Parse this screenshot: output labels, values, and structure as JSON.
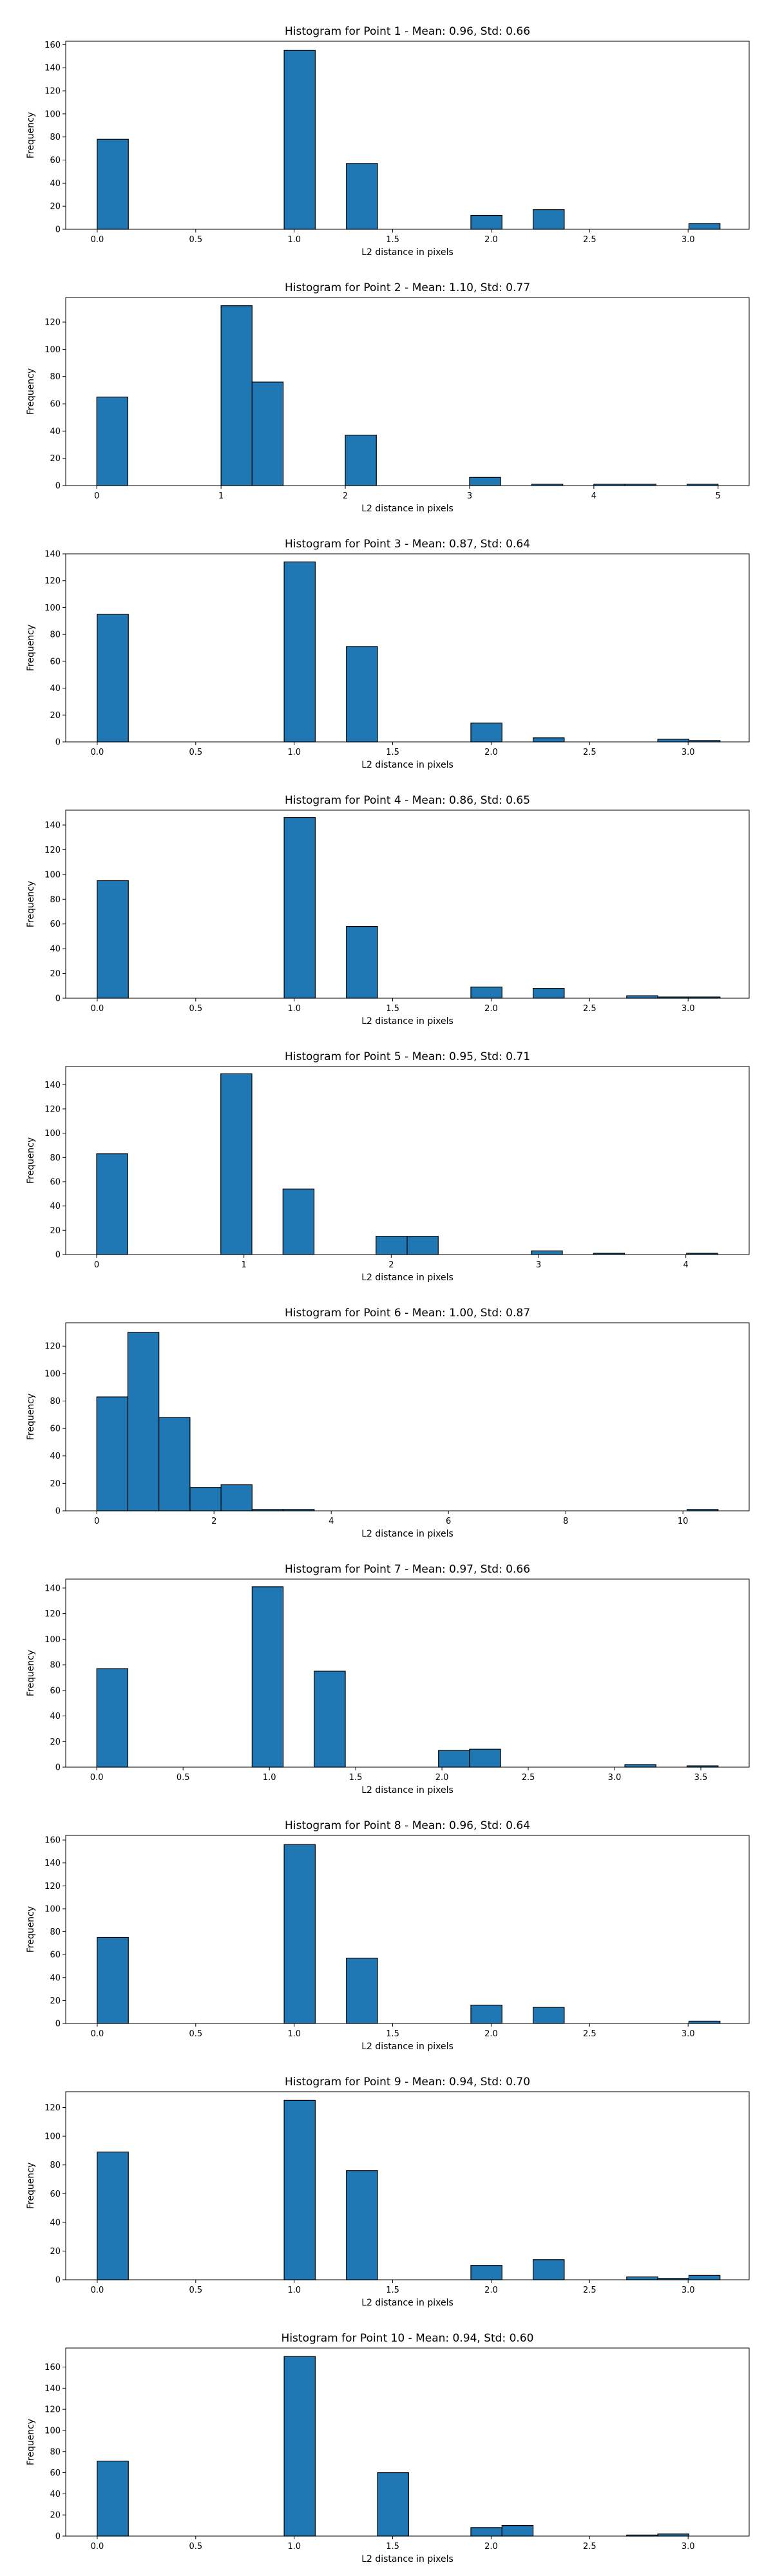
{
  "figure": {
    "bar_color": "#1f77b4",
    "edge_color": "#000000",
    "background": "#ffffff"
  },
  "chart_data": [
    {
      "type": "bar",
      "title": "Histogram for Point 1 - Mean: 0.96, Std: 0.66",
      "xlabel": "L2 distance in pixels",
      "ylabel": "Frequency",
      "xlim": [
        -0.16,
        3.31
      ],
      "ylim": [
        0,
        163
      ],
      "xticks": [
        0.0,
        0.5,
        1.0,
        1.5,
        2.0,
        2.5,
        3.0
      ],
      "xtick_labels": [
        "0.0",
        "0.5",
        "1.0",
        "1.5",
        "2.0",
        "2.5",
        "3.0"
      ],
      "yticks": [
        0,
        20,
        40,
        60,
        80,
        100,
        120,
        140,
        160
      ],
      "ytick_labels": [
        "0",
        "20",
        "40",
        "60",
        "80",
        "100",
        "120",
        "140",
        "160"
      ],
      "bins": [
        {
          "x0": 0.0,
          "x1": 0.158,
          "count": 78
        },
        {
          "x0": 0.949,
          "x1": 1.107,
          "count": 155
        },
        {
          "x0": 1.265,
          "x1": 1.423,
          "count": 57
        },
        {
          "x0": 1.897,
          "x1": 2.055,
          "count": 12
        },
        {
          "x0": 2.213,
          "x1": 2.371,
          "count": 17
        },
        {
          "x0": 3.004,
          "x1": 3.162,
          "count": 5
        }
      ]
    },
    {
      "type": "bar",
      "title": "Histogram for Point 2 - Mean: 1.10, Std: 0.77",
      "xlabel": "L2 distance in pixels",
      "ylabel": "Frequency",
      "xlim": [
        -0.25,
        5.25
      ],
      "ylim": [
        0,
        138
      ],
      "xticks": [
        0,
        1,
        2,
        3,
        4,
        5
      ],
      "xtick_labels": [
        "0",
        "1",
        "2",
        "3",
        "4",
        "5"
      ],
      "yticks": [
        0,
        20,
        40,
        60,
        80,
        100,
        120
      ],
      "ytick_labels": [
        "0",
        "20",
        "40",
        "60",
        "80",
        "100",
        "120"
      ],
      "bins": [
        {
          "x0": 0.0,
          "x1": 0.25,
          "count": 65
        },
        {
          "x0": 1.0,
          "x1": 1.25,
          "count": 132
        },
        {
          "x0": 1.25,
          "x1": 1.5,
          "count": 76
        },
        {
          "x0": 2.0,
          "x1": 2.25,
          "count": 37
        },
        {
          "x0": 3.0,
          "x1": 3.25,
          "count": 6
        },
        {
          "x0": 3.5,
          "x1": 3.75,
          "count": 1
        },
        {
          "x0": 4.0,
          "x1": 4.25,
          "count": 1
        },
        {
          "x0": 4.25,
          "x1": 4.5,
          "count": 1
        },
        {
          "x0": 4.75,
          "x1": 5.0,
          "count": 1
        }
      ]
    },
    {
      "type": "bar",
      "title": "Histogram for Point 3 - Mean: 0.87, Std: 0.64",
      "xlabel": "L2 distance in pixels",
      "ylabel": "Frequency",
      "xlim": [
        -0.16,
        3.31
      ],
      "ylim": [
        0,
        140
      ],
      "xticks": [
        0.0,
        0.5,
        1.0,
        1.5,
        2.0,
        2.5,
        3.0
      ],
      "xtick_labels": [
        "0.0",
        "0.5",
        "1.0",
        "1.5",
        "2.0",
        "2.5",
        "3.0"
      ],
      "yticks": [
        0,
        20,
        40,
        60,
        80,
        100,
        120,
        140
      ],
      "ytick_labels": [
        "0",
        "20",
        "40",
        "60",
        "80",
        "100",
        "120",
        "140"
      ],
      "bins": [
        {
          "x0": 0.0,
          "x1": 0.158,
          "count": 95
        },
        {
          "x0": 0.949,
          "x1": 1.107,
          "count": 134
        },
        {
          "x0": 1.265,
          "x1": 1.423,
          "count": 71
        },
        {
          "x0": 1.897,
          "x1": 2.055,
          "count": 14
        },
        {
          "x0": 2.213,
          "x1": 2.371,
          "count": 3
        },
        {
          "x0": 2.846,
          "x1": 3.004,
          "count": 2
        },
        {
          "x0": 3.004,
          "x1": 3.162,
          "count": 1
        }
      ]
    },
    {
      "type": "bar",
      "title": "Histogram for Point 4 - Mean: 0.86, Std: 0.65",
      "xlabel": "L2 distance in pixels",
      "ylabel": "Frequency",
      "xlim": [
        -0.16,
        3.31
      ],
      "ylim": [
        0,
        152
      ],
      "xticks": [
        0.0,
        0.5,
        1.0,
        1.5,
        2.0,
        2.5,
        3.0
      ],
      "xtick_labels": [
        "0.0",
        "0.5",
        "1.0",
        "1.5",
        "2.0",
        "2.5",
        "3.0"
      ],
      "yticks": [
        0,
        20,
        40,
        60,
        80,
        100,
        120,
        140
      ],
      "ytick_labels": [
        "0",
        "20",
        "40",
        "60",
        "80",
        "100",
        "120",
        "140"
      ],
      "bins": [
        {
          "x0": 0.0,
          "x1": 0.158,
          "count": 95
        },
        {
          "x0": 0.949,
          "x1": 1.107,
          "count": 146
        },
        {
          "x0": 1.265,
          "x1": 1.423,
          "count": 58
        },
        {
          "x0": 1.897,
          "x1": 2.055,
          "count": 9
        },
        {
          "x0": 2.213,
          "x1": 2.371,
          "count": 8
        },
        {
          "x0": 2.688,
          "x1": 2.846,
          "count": 2
        },
        {
          "x0": 2.846,
          "x1": 3.004,
          "count": 1
        },
        {
          "x0": 3.004,
          "x1": 3.162,
          "count": 1
        }
      ]
    },
    {
      "type": "bar",
      "title": "Histogram for Point 5 - Mean: 0.95, Std: 0.71",
      "xlabel": "L2 distance in pixels",
      "ylabel": "Frequency",
      "xlim": [
        -0.21,
        4.43
      ],
      "ylim": [
        0,
        155
      ],
      "xticks": [
        0,
        1,
        2,
        3,
        4
      ],
      "xtick_labels": [
        "0",
        "1",
        "2",
        "3",
        "4"
      ],
      "yticks": [
        0,
        20,
        40,
        60,
        80,
        100,
        120,
        140
      ],
      "ytick_labels": [
        "0",
        "20",
        "40",
        "60",
        "80",
        "100",
        "120",
        "140"
      ],
      "bins": [
        {
          "x0": 0.0,
          "x1": 0.211,
          "count": 83
        },
        {
          "x0": 0.843,
          "x1": 1.054,
          "count": 149
        },
        {
          "x0": 1.265,
          "x1": 1.476,
          "count": 54
        },
        {
          "x0": 1.897,
          "x1": 2.108,
          "count": 15
        },
        {
          "x0": 2.108,
          "x1": 2.319,
          "count": 15
        },
        {
          "x0": 2.951,
          "x1": 3.162,
          "count": 3
        },
        {
          "x0": 3.373,
          "x1": 3.584,
          "count": 1
        },
        {
          "x0": 4.005,
          "x1": 4.216,
          "count": 1
        }
      ]
    },
    {
      "type": "bar",
      "title": "Histogram for Point 6 - Mean: 1.00, Std: 0.87",
      "xlabel": "L2 distance in pixels",
      "ylabel": "Frequency",
      "xlim": [
        -0.53,
        11.13
      ],
      "ylim": [
        0,
        137
      ],
      "xticks": [
        0,
        2,
        4,
        6,
        8,
        10
      ],
      "xtick_labels": [
        "0",
        "2",
        "4",
        "6",
        "8",
        "10"
      ],
      "yticks": [
        0,
        20,
        40,
        60,
        80,
        100,
        120
      ],
      "ytick_labels": [
        "0",
        "20",
        "40",
        "60",
        "80",
        "100",
        "120"
      ],
      "bins": [
        {
          "x0": 0.0,
          "x1": 0.53,
          "count": 83
        },
        {
          "x0": 0.53,
          "x1": 1.06,
          "count": 130
        },
        {
          "x0": 1.06,
          "x1": 1.59,
          "count": 68
        },
        {
          "x0": 1.59,
          "x1": 2.12,
          "count": 17
        },
        {
          "x0": 2.12,
          "x1": 2.65,
          "count": 19
        },
        {
          "x0": 2.65,
          "x1": 3.18,
          "count": 1
        },
        {
          "x0": 3.18,
          "x1": 3.71,
          "count": 1
        },
        {
          "x0": 10.07,
          "x1": 10.6,
          "count": 1
        }
      ]
    },
    {
      "type": "bar",
      "title": "Histogram for Point 7 - Mean: 0.97, Std: 0.66",
      "xlabel": "L2 distance in pixels",
      "ylabel": "Frequency",
      "xlim": [
        -0.18,
        3.78
      ],
      "ylim": [
        0,
        147
      ],
      "xticks": [
        0.0,
        0.5,
        1.0,
        1.5,
        2.0,
        2.5,
        3.0,
        3.5
      ],
      "xtick_labels": [
        "0.0",
        "0.5",
        "1.0",
        "1.5",
        "2.0",
        "2.5",
        "3.0",
        "3.5"
      ],
      "yticks": [
        0,
        20,
        40,
        60,
        80,
        100,
        120,
        140
      ],
      "ytick_labels": [
        "0",
        "20",
        "40",
        "60",
        "80",
        "100",
        "120",
        "140"
      ],
      "bins": [
        {
          "x0": 0.0,
          "x1": 0.18,
          "count": 77
        },
        {
          "x0": 0.9,
          "x1": 1.08,
          "count": 141
        },
        {
          "x0": 1.26,
          "x1": 1.44,
          "count": 75
        },
        {
          "x0": 1.98,
          "x1": 2.16,
          "count": 13
        },
        {
          "x0": 2.16,
          "x1": 2.34,
          "count": 14
        },
        {
          "x0": 3.06,
          "x1": 3.24,
          "count": 2
        },
        {
          "x0": 3.42,
          "x1": 3.6,
          "count": 1
        }
      ]
    },
    {
      "type": "bar",
      "title": "Histogram for Point 8 - Mean: 0.96, Std: 0.64",
      "xlabel": "L2 distance in pixels",
      "ylabel": "Frequency",
      "xlim": [
        -0.16,
        3.31
      ],
      "ylim": [
        0,
        164
      ],
      "xticks": [
        0.0,
        0.5,
        1.0,
        1.5,
        2.0,
        2.5,
        3.0
      ],
      "xtick_labels": [
        "0.0",
        "0.5",
        "1.0",
        "1.5",
        "2.0",
        "2.5",
        "3.0"
      ],
      "yticks": [
        0,
        20,
        40,
        60,
        80,
        100,
        120,
        140,
        160
      ],
      "ytick_labels": [
        "0",
        "20",
        "40",
        "60",
        "80",
        "100",
        "120",
        "140",
        "160"
      ],
      "bins": [
        {
          "x0": 0.0,
          "x1": 0.158,
          "count": 75
        },
        {
          "x0": 0.949,
          "x1": 1.107,
          "count": 156
        },
        {
          "x0": 1.265,
          "x1": 1.423,
          "count": 57
        },
        {
          "x0": 1.897,
          "x1": 2.055,
          "count": 16
        },
        {
          "x0": 2.213,
          "x1": 2.371,
          "count": 14
        },
        {
          "x0": 3.004,
          "x1": 3.162,
          "count": 2
        }
      ]
    },
    {
      "type": "bar",
      "title": "Histogram for Point 9 - Mean: 0.94, Std: 0.70",
      "xlabel": "L2 distance in pixels",
      "ylabel": "Frequency",
      "xlim": [
        -0.16,
        3.31
      ],
      "ylim": [
        0,
        131
      ],
      "xticks": [
        0.0,
        0.5,
        1.0,
        1.5,
        2.0,
        2.5,
        3.0
      ],
      "xtick_labels": [
        "0.0",
        "0.5",
        "1.0",
        "1.5",
        "2.0",
        "2.5",
        "3.0"
      ],
      "yticks": [
        0,
        20,
        40,
        60,
        80,
        100,
        120
      ],
      "ytick_labels": [
        "0",
        "20",
        "40",
        "60",
        "80",
        "100",
        "120"
      ],
      "bins": [
        {
          "x0": 0.0,
          "x1": 0.158,
          "count": 89
        },
        {
          "x0": 0.949,
          "x1": 1.107,
          "count": 125
        },
        {
          "x0": 1.265,
          "x1": 1.423,
          "count": 76
        },
        {
          "x0": 1.897,
          "x1": 2.055,
          "count": 10
        },
        {
          "x0": 2.213,
          "x1": 2.371,
          "count": 14
        },
        {
          "x0": 2.688,
          "x1": 2.846,
          "count": 2
        },
        {
          "x0": 2.846,
          "x1": 3.004,
          "count": 1
        },
        {
          "x0": 3.004,
          "x1": 3.162,
          "count": 3
        }
      ]
    },
    {
      "type": "bar",
      "title": "Histogram for Point 10 - Mean: 0.94, Std: 0.60",
      "xlabel": "L2 distance in pixels",
      "ylabel": "Frequency",
      "xlim": [
        -0.16,
        3.31
      ],
      "ylim": [
        0,
        178
      ],
      "xticks": [
        0.0,
        0.5,
        1.0,
        1.5,
        2.0,
        2.5,
        3.0
      ],
      "xtick_labels": [
        "0.0",
        "0.5",
        "1.0",
        "1.5",
        "2.0",
        "2.5",
        "3.0"
      ],
      "yticks": [
        0,
        20,
        40,
        60,
        80,
        100,
        120,
        140,
        160
      ],
      "ytick_labels": [
        "0",
        "20",
        "40",
        "60",
        "80",
        "100",
        "120",
        "140",
        "160"
      ],
      "bins": [
        {
          "x0": 0.0,
          "x1": 0.158,
          "count": 71
        },
        {
          "x0": 0.949,
          "x1": 1.107,
          "count": 170
        },
        {
          "x0": 1.423,
          "x1": 1.581,
          "count": 60
        },
        {
          "x0": 1.897,
          "x1": 2.055,
          "count": 8
        },
        {
          "x0": 2.055,
          "x1": 2.213,
          "count": 10
        },
        {
          "x0": 2.688,
          "x1": 2.846,
          "count": 1
        },
        {
          "x0": 2.846,
          "x1": 3.004,
          "count": 2
        }
      ]
    }
  ]
}
